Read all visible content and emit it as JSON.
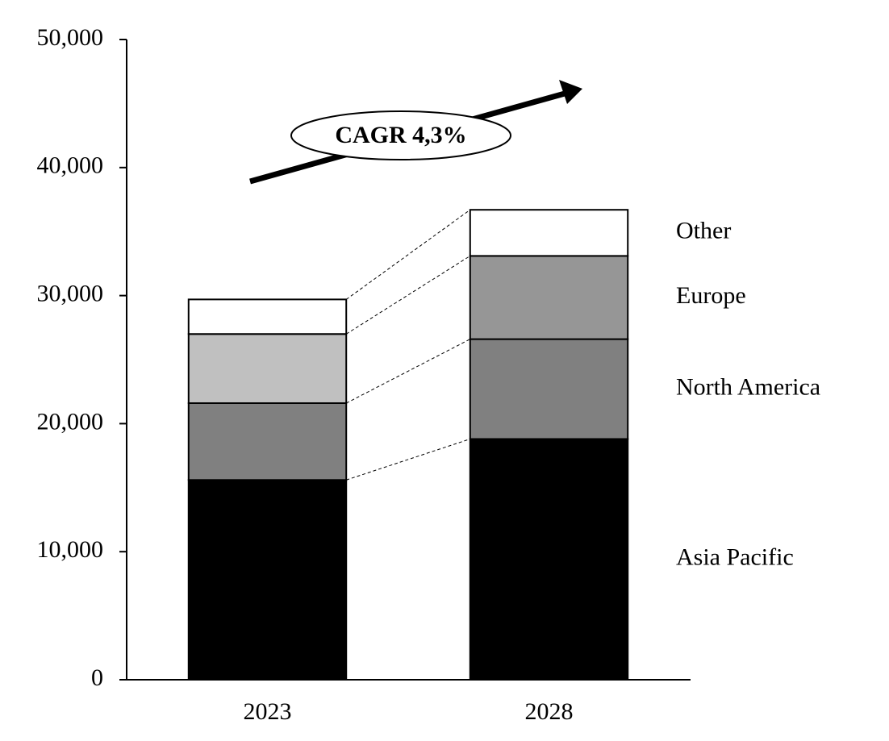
{
  "chart_data": {
    "type": "stacked_bar",
    "annotation": "CAGR 4,3%",
    "categories": [
      "2023",
      "2028"
    ],
    "series": [
      {
        "name": "Asia Pacific",
        "color": "#000000",
        "values": [
          15600,
          18800
        ]
      },
      {
        "name": "North America",
        "color": "#808080",
        "values": [
          6000,
          7800
        ]
      },
      {
        "name": "Europe",
        "colors": [
          "#c0c0c0",
          "#969696"
        ],
        "values": [
          5400,
          6500
        ]
      },
      {
        "name": "Other",
        "color": "#ffffff",
        "values": [
          2700,
          3600
        ]
      }
    ],
    "ylim": [
      0,
      50000
    ],
    "yticks": [
      0,
      {
        "value": 10000,
        "label": "10,000"
      },
      {
        "value": 20000,
        "label": "20,000"
      },
      {
        "value": 30000,
        "label": "30,000"
      },
      {
        "value": 40000,
        "label": "40,000"
      },
      {
        "value": 50000,
        "label": "50,000"
      }
    ],
    "legend": "right"
  }
}
